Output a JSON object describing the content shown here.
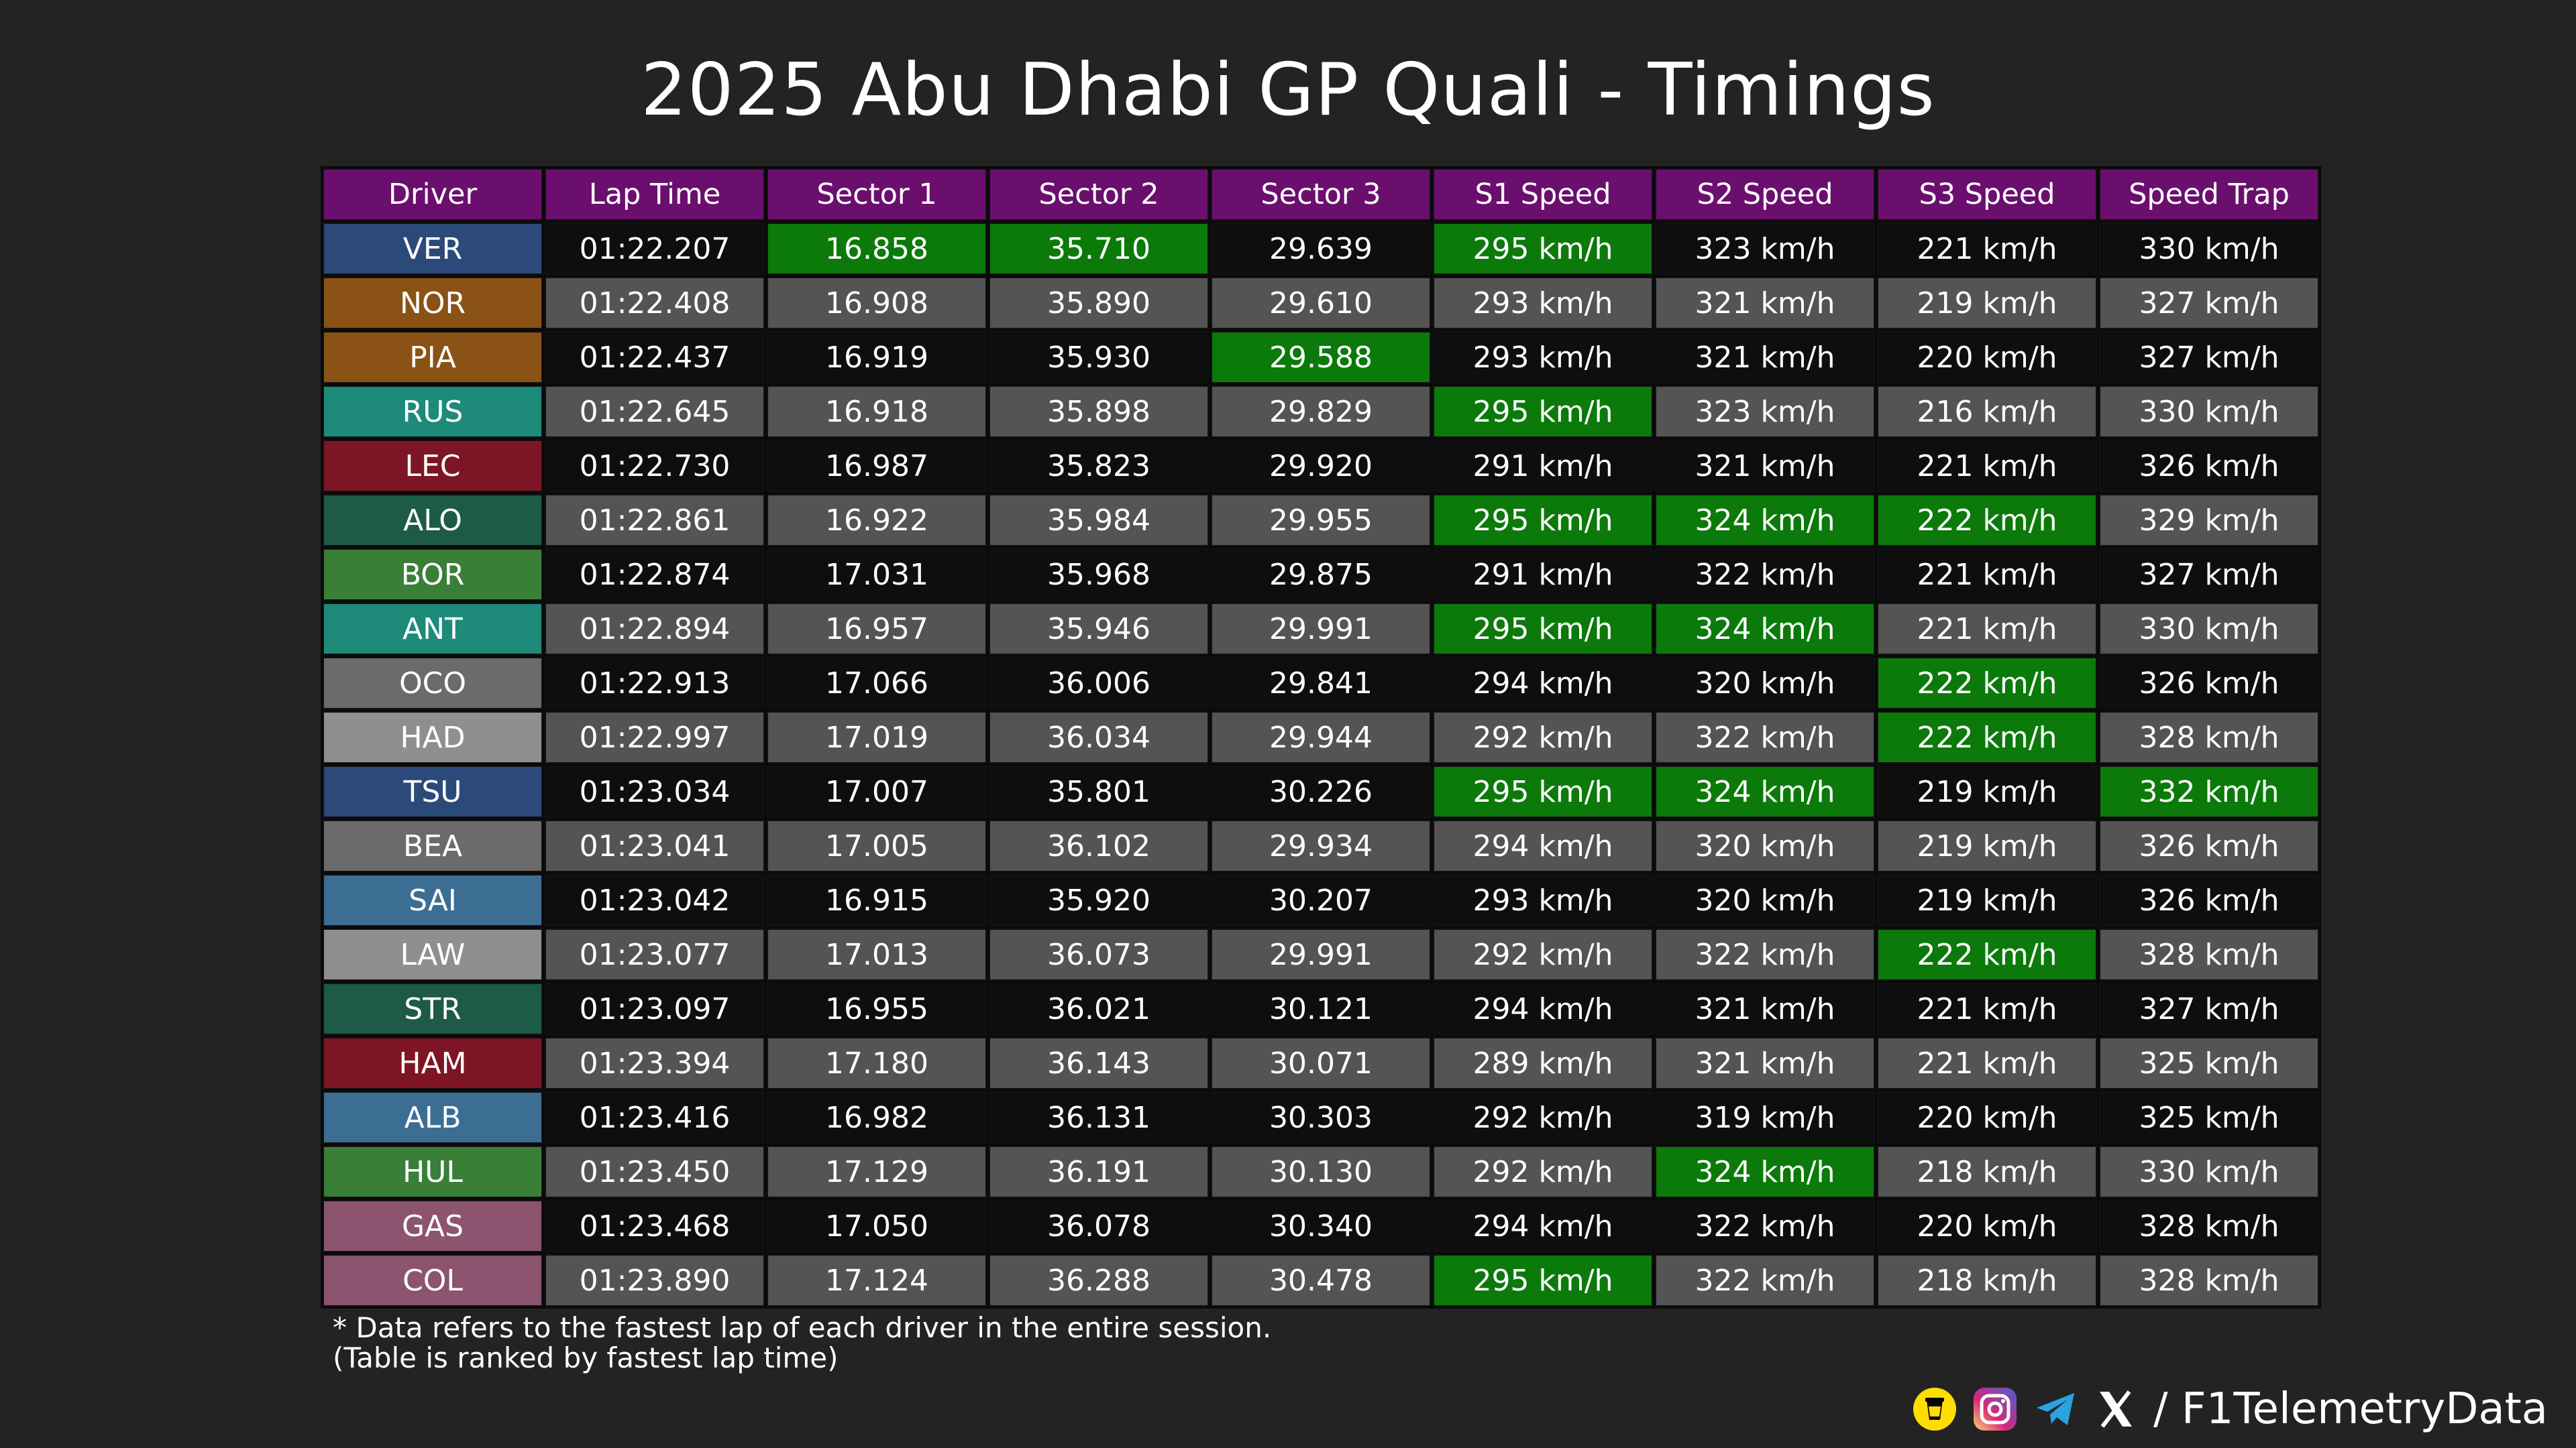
{
  "title": "2025 Abu Dhabi GP Quali - Timings",
  "watermark": "@F1TelemetryData",
  "columns": [
    "Driver",
    "Lap Time",
    "Sector 1",
    "Sector 2",
    "Sector 3",
    "S1 Speed",
    "S2 Speed",
    "S3 Speed",
    "Speed Trap"
  ],
  "rows": [
    {
      "driver": "VER",
      "team_color": "#2b4a7a",
      "lap": "01:22.207",
      "s1": "16.858",
      "s2": "35.710",
      "s3": "29.639",
      "sp1": "295 km/h",
      "sp2": "323 km/h",
      "sp3": "221 km/h",
      "trap": "330 km/h",
      "best": [
        "s1",
        "s2",
        "sp1"
      ]
    },
    {
      "driver": "NOR",
      "team_color": "#8a5214",
      "lap": "01:22.408",
      "s1": "16.908",
      "s2": "35.890",
      "s3": "29.610",
      "sp1": "293 km/h",
      "sp2": "321 km/h",
      "sp3": "219 km/h",
      "trap": "327 km/h",
      "best": []
    },
    {
      "driver": "PIA",
      "team_color": "#8a5214",
      "lap": "01:22.437",
      "s1": "16.919",
      "s2": "35.930",
      "s3": "29.588",
      "sp1": "293 km/h",
      "sp2": "321 km/h",
      "sp3": "220 km/h",
      "trap": "327 km/h",
      "best": [
        "s3"
      ]
    },
    {
      "driver": "RUS",
      "team_color": "#1e8a7a",
      "lap": "01:22.645",
      "s1": "16.918",
      "s2": "35.898",
      "s3": "29.829",
      "sp1": "295 km/h",
      "sp2": "323 km/h",
      "sp3": "216 km/h",
      "trap": "330 km/h",
      "best": [
        "sp1"
      ]
    },
    {
      "driver": "LEC",
      "team_color": "#7e1524",
      "lap": "01:22.730",
      "s1": "16.987",
      "s2": "35.823",
      "s3": "29.920",
      "sp1": "291 km/h",
      "sp2": "321 km/h",
      "sp3": "221 km/h",
      "trap": "326 km/h",
      "best": []
    },
    {
      "driver": "ALO",
      "team_color": "#1e5a48",
      "lap": "01:22.861",
      "s1": "16.922",
      "s2": "35.984",
      "s3": "29.955",
      "sp1": "295 km/h",
      "sp2": "324 km/h",
      "sp3": "222 km/h",
      "trap": "329 km/h",
      "best": [
        "sp1",
        "sp2",
        "sp3"
      ]
    },
    {
      "driver": "BOR",
      "team_color": "#3a7f38",
      "lap": "01:22.874",
      "s1": "17.031",
      "s2": "35.968",
      "s3": "29.875",
      "sp1": "291 km/h",
      "sp2": "322 km/h",
      "sp3": "221 km/h",
      "trap": "327 km/h",
      "best": []
    },
    {
      "driver": "ANT",
      "team_color": "#1e8a7a",
      "lap": "01:22.894",
      "s1": "16.957",
      "s2": "35.946",
      "s3": "29.991",
      "sp1": "295 km/h",
      "sp2": "324 km/h",
      "sp3": "221 km/h",
      "trap": "330 km/h",
      "best": [
        "sp1",
        "sp2"
      ]
    },
    {
      "driver": "OCO",
      "team_color": "#6b6b6b",
      "lap": "01:22.913",
      "s1": "17.066",
      "s2": "36.006",
      "s3": "29.841",
      "sp1": "294 km/h",
      "sp2": "320 km/h",
      "sp3": "222 km/h",
      "trap": "326 km/h",
      "best": [
        "sp3"
      ]
    },
    {
      "driver": "HAD",
      "team_color": "#8f8f8f",
      "lap": "01:22.997",
      "s1": "17.019",
      "s2": "36.034",
      "s3": "29.944",
      "sp1": "292 km/h",
      "sp2": "322 km/h",
      "sp3": "222 km/h",
      "trap": "328 km/h",
      "best": [
        "sp3"
      ]
    },
    {
      "driver": "TSU",
      "team_color": "#2b4a7a",
      "lap": "01:23.034",
      "s1": "17.007",
      "s2": "35.801",
      "s3": "30.226",
      "sp1": "295 km/h",
      "sp2": "324 km/h",
      "sp3": "219 km/h",
      "trap": "332 km/h",
      "best": [
        "sp1",
        "sp2",
        "trap"
      ]
    },
    {
      "driver": "BEA",
      "team_color": "#6b6b6b",
      "lap": "01:23.041",
      "s1": "17.005",
      "s2": "36.102",
      "s3": "29.934",
      "sp1": "294 km/h",
      "sp2": "320 km/h",
      "sp3": "219 km/h",
      "trap": "326 km/h",
      "best": []
    },
    {
      "driver": "SAI",
      "team_color": "#3c6e94",
      "lap": "01:23.042",
      "s1": "16.915",
      "s2": "35.920",
      "s3": "30.207",
      "sp1": "293 km/h",
      "sp2": "320 km/h",
      "sp3": "219 km/h",
      "trap": "326 km/h",
      "best": []
    },
    {
      "driver": "LAW",
      "team_color": "#8f8f8f",
      "lap": "01:23.077",
      "s1": "17.013",
      "s2": "36.073",
      "s3": "29.991",
      "sp1": "292 km/h",
      "sp2": "322 km/h",
      "sp3": "222 km/h",
      "trap": "328 km/h",
      "best": [
        "sp3"
      ]
    },
    {
      "driver": "STR",
      "team_color": "#1e5a48",
      "lap": "01:23.097",
      "s1": "16.955",
      "s2": "36.021",
      "s3": "30.121",
      "sp1": "294 km/h",
      "sp2": "321 km/h",
      "sp3": "221 km/h",
      "trap": "327 km/h",
      "best": []
    },
    {
      "driver": "HAM",
      "team_color": "#7e1524",
      "lap": "01:23.394",
      "s1": "17.180",
      "s2": "36.143",
      "s3": "30.071",
      "sp1": "289 km/h",
      "sp2": "321 km/h",
      "sp3": "221 km/h",
      "trap": "325 km/h",
      "best": []
    },
    {
      "driver": "ALB",
      "team_color": "#3c6e94",
      "lap": "01:23.416",
      "s1": "16.982",
      "s2": "36.131",
      "s3": "30.303",
      "sp1": "292 km/h",
      "sp2": "319 km/h",
      "sp3": "220 km/h",
      "trap": "325 km/h",
      "best": []
    },
    {
      "driver": "HUL",
      "team_color": "#3a7f38",
      "lap": "01:23.450",
      "s1": "17.129",
      "s2": "36.191",
      "s3": "30.130",
      "sp1": "292 km/h",
      "sp2": "324 km/h",
      "sp3": "218 km/h",
      "trap": "330 km/h",
      "best": [
        "sp2"
      ]
    },
    {
      "driver": "GAS",
      "team_color": "#8c546e",
      "lap": "01:23.468",
      "s1": "17.050",
      "s2": "36.078",
      "s3": "30.340",
      "sp1": "294 km/h",
      "sp2": "322 km/h",
      "sp3": "220 km/h",
      "trap": "328 km/h",
      "best": []
    },
    {
      "driver": "COL",
      "team_color": "#8c546e",
      "lap": "01:23.890",
      "s1": "17.124",
      "s2": "36.288",
      "s3": "30.478",
      "sp1": "295 km/h",
      "sp2": "322 km/h",
      "sp3": "218 km/h",
      "trap": "328 km/h",
      "best": [
        "sp1"
      ]
    }
  ],
  "footnote": {
    "line1": "* Data refers to the fastest lap of each driver in the entire session.",
    "line2": "(Table is ranked by fastest lap time)"
  },
  "social": {
    "icons": [
      "buymeacoffee-icon",
      "instagram-icon",
      "telegram-icon",
      "x-icon"
    ],
    "handle": "/ F1TelemetryData"
  },
  "colors": {
    "header": "#6b0f6e",
    "best": "#0b7a0b",
    "row_dark": "#0e0e0e",
    "row_light": "#545454"
  }
}
